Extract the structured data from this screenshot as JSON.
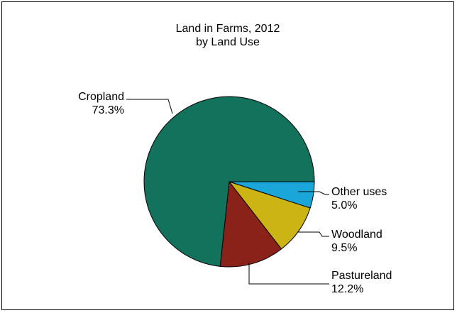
{
  "chart_data": {
    "type": "pie",
    "title": "Land in Farms, 2012",
    "subtitle": "by Land Use",
    "start_angle_deg": 0,
    "direction": "clockwise",
    "slices": [
      {
        "label": "Other uses",
        "value_label": "5.0%",
        "value": 5.0,
        "color": "#1ba6d9"
      },
      {
        "label": "Woodland",
        "value_label": "9.5%",
        "value": 9.5,
        "color": "#cdb415"
      },
      {
        "label": "Pastureland",
        "value_label": "12.2%",
        "value": 12.2,
        "color": "#8a2219"
      },
      {
        "label": "Cropland",
        "value_label": "73.3%",
        "value": 73.3,
        "color": "#12725c"
      }
    ]
  }
}
